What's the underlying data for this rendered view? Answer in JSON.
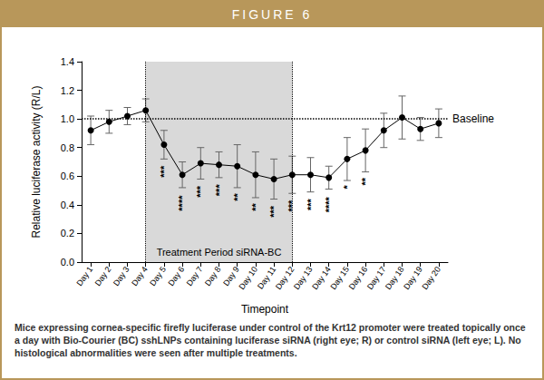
{
  "chart_data": {
    "type": "line",
    "title": "FIGURE 6",
    "caption": "Mice expressing cornea-specific firefly luciferase under control of the Krt12 promoter were treated topically once a day with Bio-Courier (BC) sshLNPs containing luciferase siRNA (right eye; R) or control siRNA (left eye; L). No histological abnormalities were seen after multiple treatments.",
    "x_label": "Timepoint",
    "y_label": "Relative luciferase activity (R/L)",
    "categories": [
      "Day 1",
      "Day 2",
      "Day 3",
      "Day 4",
      "Day 5",
      "Day 6",
      "Day 7",
      "Day 8",
      "Day 9",
      "Day 10",
      "Day 11",
      "Day 12",
      "Day 13",
      "Day 14",
      "Day 15",
      "Day 16",
      "Day 17",
      "Day 18",
      "Day 19",
      "Day 20"
    ],
    "values": [
      0.92,
      0.98,
      1.02,
      1.06,
      0.82,
      0.61,
      0.69,
      0.68,
      0.67,
      0.61,
      0.58,
      0.61,
      0.61,
      0.59,
      0.72,
      0.78,
      0.92,
      1.01,
      0.93,
      0.97
    ],
    "errors": [
      0.1,
      0.08,
      0.06,
      0.08,
      0.1,
      0.09,
      0.11,
      0.09,
      0.15,
      0.16,
      0.14,
      0.13,
      0.12,
      0.08,
      0.15,
      0.15,
      0.12,
      0.15,
      0.08,
      0.1
    ],
    "significance": [
      null,
      null,
      null,
      null,
      "***",
      "****",
      "***",
      "***",
      "**",
      "**",
      "***",
      "***",
      "***",
      "****",
      "*",
      "**",
      null,
      null,
      null,
      null
    ],
    "color": "#000000",
    "marker": "circle",
    "ylim": [
      0,
      1.4
    ],
    "yticks": [
      {
        "value": 0,
        "label": "0.0"
      },
      {
        "value": 0.2,
        "label": "0.2"
      },
      {
        "value": 0.4,
        "label": "0.4"
      },
      {
        "value": 0.6,
        "label": "0.6"
      },
      {
        "value": 0.8,
        "label": "0.8"
      },
      {
        "value": 1.0,
        "label": "1.0"
      },
      {
        "value": 1.2,
        "label": "1.2"
      },
      {
        "value": 1.4,
        "label": "1.4"
      }
    ],
    "baseline": {
      "value": 1.0,
      "label": "Baseline"
    },
    "treatment_period": {
      "start": "Day 4",
      "end": "Day 12",
      "label": "Treatment Period siRNA-BC"
    },
    "grid": false
  }
}
